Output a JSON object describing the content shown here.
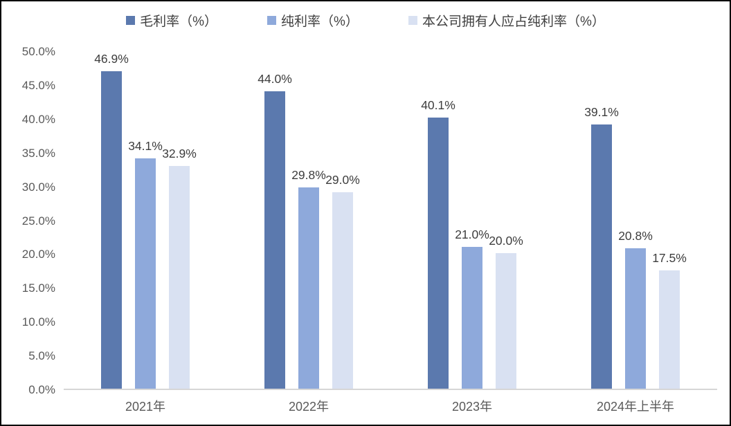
{
  "chart_data": {
    "type": "bar",
    "title": "",
    "categories": [
      "2021年",
      "2022年",
      "2023年",
      "2024年上半年"
    ],
    "series": [
      {
        "name": "毛利率（%）",
        "color": "#5b79ae",
        "values": [
          46.9,
          44.0,
          40.1,
          39.1
        ],
        "labels": [
          "46.9%",
          "44.0%",
          "40.1%",
          "39.1%"
        ]
      },
      {
        "name": "纯利率（%）",
        "color": "#8ea9db",
        "values": [
          34.1,
          29.8,
          21.0,
          20.8
        ],
        "labels": [
          "34.1%",
          "29.8%",
          "21.0%",
          "20.8%"
        ]
      },
      {
        "name": "本公司拥有人应占纯利率（%）",
        "color": "#d9e1f2",
        "values": [
          32.9,
          29.0,
          20.0,
          17.5
        ],
        "labels": [
          "32.9%",
          "29.0%",
          "20.0%",
          "17.5%"
        ]
      }
    ],
    "xlabel": "",
    "ylabel": "",
    "ylim": [
      0,
      50
    ],
    "ytick_step": 5,
    "yticks": [
      "0.0%",
      "5.0%",
      "10.0%",
      "15.0%",
      "20.0%",
      "25.0%",
      "30.0%",
      "35.0%",
      "40.0%",
      "45.0%",
      "50.0%"
    ],
    "grid": false,
    "legend_position": "top",
    "colors": {
      "axis_line": "#d6d6d6",
      "tick_text": "#595959",
      "value_text": "#3d3d3d",
      "legend_text": "#404040",
      "frame_border": "#000000",
      "background": "#ffffff"
    }
  }
}
